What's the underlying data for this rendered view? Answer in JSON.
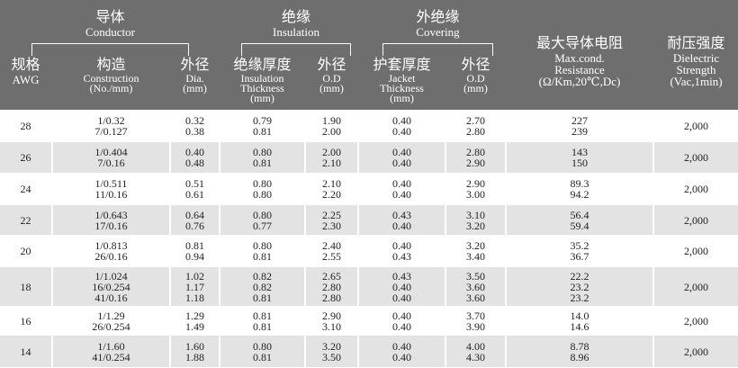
{
  "header": {
    "groups": [
      {
        "zh": "导体",
        "en": "Conductor"
      },
      {
        "zh": "绝缘",
        "en": "Insulation"
      },
      {
        "zh": "外绝缘",
        "en": "Covering"
      }
    ],
    "columns": [
      {
        "zh": "规格",
        "en": [
          "AWG"
        ]
      },
      {
        "zh": "构造",
        "en": [
          "Construction",
          "(No./mm)"
        ]
      },
      {
        "zh": "外径",
        "en": [
          "Dia.",
          "(mm)"
        ]
      },
      {
        "zh": "绝缘厚度",
        "en": [
          "Insulation",
          "Thickness",
          "(mm)"
        ]
      },
      {
        "zh": "外径",
        "en": [
          "O.D",
          "(mm)"
        ]
      },
      {
        "zh": "护套厚度",
        "en": [
          "Jacket",
          "Thickness",
          "(mm)"
        ]
      },
      {
        "zh": "外径",
        "en": [
          "O.D",
          "(mm)"
        ]
      },
      {
        "zh": "最大导体电阻",
        "en": [
          "Max.cond.",
          "Resistance",
          "(Ω/Km,20℃,Dc)"
        ]
      },
      {
        "zh": "耐压强度",
        "en": [
          "Dielectric",
          "Strength",
          "(Vac,1min)"
        ]
      }
    ]
  },
  "table": {
    "rows": [
      {
        "awg": "28",
        "construction": [
          "1/0.32",
          "7/0.127"
        ],
        "dia": [
          "0.32",
          "0.38"
        ],
        "ins_thickness": [
          "0.79",
          "0.81"
        ],
        "ins_od": [
          "1.90",
          "2.00"
        ],
        "jacket_thickness": [
          "0.40",
          "0.40"
        ],
        "jacket_od": [
          "2.70",
          "2.80"
        ],
        "resistance": [
          "227",
          "239"
        ],
        "dielectric": "2,000"
      },
      {
        "awg": "26",
        "construction": [
          "1/0.404",
          "7/0.16"
        ],
        "dia": [
          "0.40",
          "0.48"
        ],
        "ins_thickness": [
          "0.80",
          "0.81"
        ],
        "ins_od": [
          "2.00",
          "2.10"
        ],
        "jacket_thickness": [
          "0.40",
          "0.40"
        ],
        "jacket_od": [
          "2.80",
          "2.90"
        ],
        "resistance": [
          "143",
          "150"
        ],
        "dielectric": "2,000"
      },
      {
        "awg": "24",
        "construction": [
          "1/0.511",
          "11/0.16"
        ],
        "dia": [
          "0.51",
          "0.61"
        ],
        "ins_thickness": [
          "0.80",
          "0.80"
        ],
        "ins_od": [
          "2.10",
          "2.20"
        ],
        "jacket_thickness": [
          "0.40",
          "0.40"
        ],
        "jacket_od": [
          "2.90",
          "3.00"
        ],
        "resistance": [
          "89.3",
          "94.2"
        ],
        "dielectric": "2,000"
      },
      {
        "awg": "22",
        "construction": [
          "1/0.643",
          "17/0.16"
        ],
        "dia": [
          "0.64",
          "0.76"
        ],
        "ins_thickness": [
          "0.80",
          "0.77"
        ],
        "ins_od": [
          "2.25",
          "2.30"
        ],
        "jacket_thickness": [
          "0.43",
          "0.40"
        ],
        "jacket_od": [
          "3.10",
          "3.20"
        ],
        "resistance": [
          "56.4",
          "59.4"
        ],
        "dielectric": "2,000"
      },
      {
        "awg": "20",
        "construction": [
          "1/0.813",
          "26/0.16"
        ],
        "dia": [
          "0.81",
          "0.94"
        ],
        "ins_thickness": [
          "0.80",
          "0.81"
        ],
        "ins_od": [
          "2.40",
          "2.55"
        ],
        "jacket_thickness": [
          "0.40",
          "0.43"
        ],
        "jacket_od": [
          "3.20",
          "3.40"
        ],
        "resistance": [
          "35.2",
          "36.7"
        ],
        "dielectric": "2,000"
      },
      {
        "awg": "18",
        "construction": [
          "1/1.024",
          "16/0.254",
          "41/0.16"
        ],
        "dia": [
          "1.02",
          "1.17",
          "1.18"
        ],
        "ins_thickness": [
          "0.82",
          "0.82",
          "0.81"
        ],
        "ins_od": [
          "2.65",
          "2.80",
          "2.80"
        ],
        "jacket_thickness": [
          "0.43",
          "0.40",
          "0.40"
        ],
        "jacket_od": [
          "3.50",
          "3.60",
          "3.60"
        ],
        "resistance": [
          "22.2",
          "23.2",
          "23.2"
        ],
        "dielectric": "2,000"
      },
      {
        "awg": "16",
        "construction": [
          "1/1.29",
          "26/0.254"
        ],
        "dia": [
          "1.29",
          "1.49"
        ],
        "ins_thickness": [
          "0.81",
          "0.81"
        ],
        "ins_od": [
          "2.90",
          "3.10"
        ],
        "jacket_thickness": [
          "0.40",
          "0.40"
        ],
        "jacket_od": [
          "3.70",
          "3.90"
        ],
        "resistance": [
          "14.0",
          "14.6"
        ],
        "dielectric": "2,000"
      },
      {
        "awg": "14",
        "construction": [
          "1/1.60",
          "41/0.254"
        ],
        "dia": [
          "1.60",
          "1.88"
        ],
        "ins_thickness": [
          "0.80",
          "0.81"
        ],
        "ins_od": [
          "3.20",
          "3.50"
        ],
        "jacket_thickness": [
          "0.40",
          "0.40"
        ],
        "jacket_od": [
          "4.00",
          "4.30"
        ],
        "resistance": [
          "8.78",
          "8.96"
        ],
        "dielectric": "2,000"
      }
    ]
  }
}
